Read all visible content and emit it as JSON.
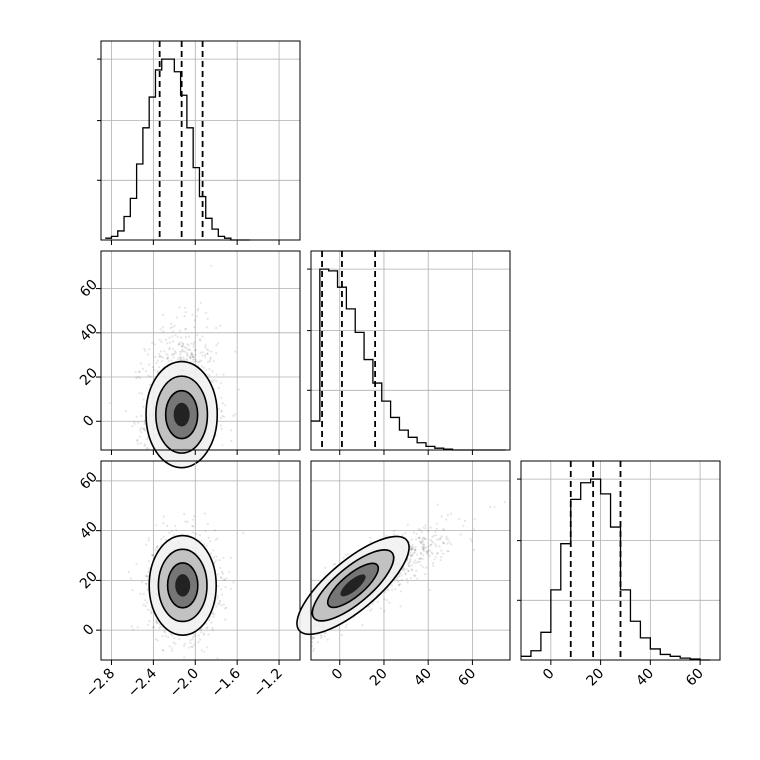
{
  "chart_data": {
    "type": "corner",
    "grid": true,
    "params": [
      {
        "range": [
          -2.9,
          -1.0
        ],
        "ticks": [
          -2.8,
          -2.4,
          -2.0,
          -1.6,
          -1.2
        ],
        "tick_labels": [
          "−2.8",
          "−2.4",
          "−2.0",
          "−1.6",
          "−1.2"
        ]
      },
      {
        "range": [
          -13,
          77
        ],
        "ticks": [
          0,
          20,
          40,
          60
        ],
        "tick_labels": [
          "0",
          "20",
          "40",
          "60"
        ]
      },
      {
        "range": [
          -12,
          68
        ],
        "ticks": [
          0,
          20,
          40,
          60
        ],
        "tick_labels": [
          "0",
          "20",
          "40",
          "60"
        ]
      }
    ],
    "diagonal": [
      {
        "bin_edges": [
          -2.86,
          -2.8,
          -2.74,
          -2.68,
          -2.62,
          -2.56,
          -2.5,
          -2.44,
          -2.38,
          -2.32,
          -2.26,
          -2.2,
          -2.14,
          -2.08,
          -2.02,
          -1.96,
          -1.9,
          -1.84,
          -1.78,
          -1.72,
          -1.66,
          -1.6,
          -1.54,
          -1.48
        ],
        "counts": [
          0.01,
          0.02,
          0.05,
          0.13,
          0.23,
          0.42,
          0.62,
          0.79,
          0.94,
          1.0,
          1.0,
          0.93,
          0.8,
          0.62,
          0.4,
          0.24,
          0.12,
          0.06,
          0.02,
          0.01,
          0.0,
          0.0,
          0.0
        ],
        "quantiles": [
          -2.34,
          -2.13,
          -1.93
        ]
      },
      {
        "bin_edges": [
          -13,
          -9,
          -5,
          -1,
          3,
          7,
          11,
          15,
          19,
          23,
          27,
          31,
          35,
          39,
          43,
          47,
          51,
          55,
          59,
          63,
          67,
          71,
          75
        ],
        "counts": [
          0.16,
          1.0,
          0.99,
          0.9,
          0.78,
          0.65,
          0.5,
          0.37,
          0.27,
          0.18,
          0.11,
          0.07,
          0.04,
          0.02,
          0.01,
          0.005,
          0.0,
          0.0,
          0.0,
          0.0,
          0.0,
          0.0
        ],
        "quantiles": [
          -8,
          1,
          16
        ]
      },
      {
        "bin_edges": [
          -12,
          -8,
          -4,
          0,
          4,
          8,
          12,
          16,
          20,
          24,
          28,
          32,
          36,
          40,
          44,
          48,
          52,
          56,
          60,
          64
        ],
        "counts": [
          0.02,
          0.05,
          0.15,
          0.38,
          0.63,
          0.87,
          0.96,
          0.98,
          0.9,
          0.72,
          0.38,
          0.21,
          0.12,
          0.06,
          0.03,
          0.02,
          0.01,
          0.005,
          0.0
        ],
        "quantiles": [
          8,
          17,
          28
        ]
      }
    ],
    "pairs": [
      {
        "row": 1,
        "col": 0,
        "mean": [
          -2.13,
          3
        ],
        "std": [
          0.17,
          12
        ],
        "corr": 0.05,
        "skew": "y"
      },
      {
        "row": 2,
        "col": 0,
        "mean": [
          -2.12,
          18
        ],
        "std": [
          0.16,
          10
        ],
        "corr": -0.02,
        "skew": "none"
      },
      {
        "row": 2,
        "col": 1,
        "mean": [
          6,
          18
        ],
        "std": [
          14,
          11
        ],
        "corr": 0.88,
        "skew": "x"
      }
    ]
  }
}
